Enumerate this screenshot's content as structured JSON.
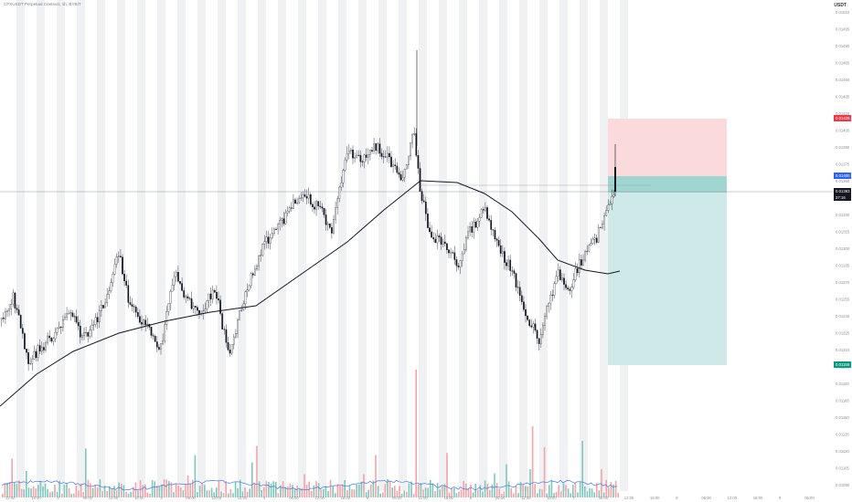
{
  "header": {
    "title": "CFXUSDT Perpetual Contract, 1h, BYBIT",
    "currency": "USDT"
  },
  "price_axis": {
    "ticks": [
      "0.01510",
      "0.01495",
      "0.01480",
      "0.01465",
      "0.01450",
      "0.01435",
      "0.01420",
      "0.01405",
      "0.01390",
      "0.01375",
      "0.01360",
      "0.01345",
      "0.01330",
      "0.01315",
      "0.01300",
      "0.01285",
      "0.01270",
      "0.01255",
      "0.01240",
      "0.01225",
      "0.01210",
      "0.01195",
      "0.01180",
      "0.01165",
      "0.01150",
      "0.01135",
      "0.01120",
      "0.01105",
      "0.01090"
    ],
    "stop_loss_tag": "0.01425",
    "entry_tag": "0.01400",
    "current_price_tag": "0.01393",
    "countdown_tag": "37:16",
    "take_profit_tag": "0.01158"
  },
  "time_axis": {
    "ticks": [
      "12:00",
      "18:00",
      "2",
      "06:00",
      "12:00",
      "18:00",
      "3",
      "06:00",
      "12:00",
      "18:00",
      "4",
      "06:00",
      "12:00",
      "18:00",
      "5",
      "06:00",
      "12:00",
      "18:00",
      "6",
      "06:00",
      "12:00",
      "18:00",
      "7",
      "06:00",
      "12:00",
      "18:00",
      "8",
      "06:00",
      "12:00",
      "18:00",
      "9",
      "06:00"
    ]
  },
  "colors": {
    "up_candle": "#ffffff",
    "down_candle": "#131722",
    "wick": "#131722",
    "moving_average": "#131722",
    "stop_zone": "#fbdadc",
    "target_zone": "#cdeae8",
    "entry_band": "#8fcfc7",
    "stop_tag": "#f23645",
    "entry_tag": "#2962ff",
    "price_tag": "#131722",
    "target_tag": "#089981",
    "volume_up": "#7cc8bd",
    "volume_down": "#f5a3a8",
    "volume_ma": "#4a7bd6",
    "session_shade": "#f0f1f3"
  }
}
